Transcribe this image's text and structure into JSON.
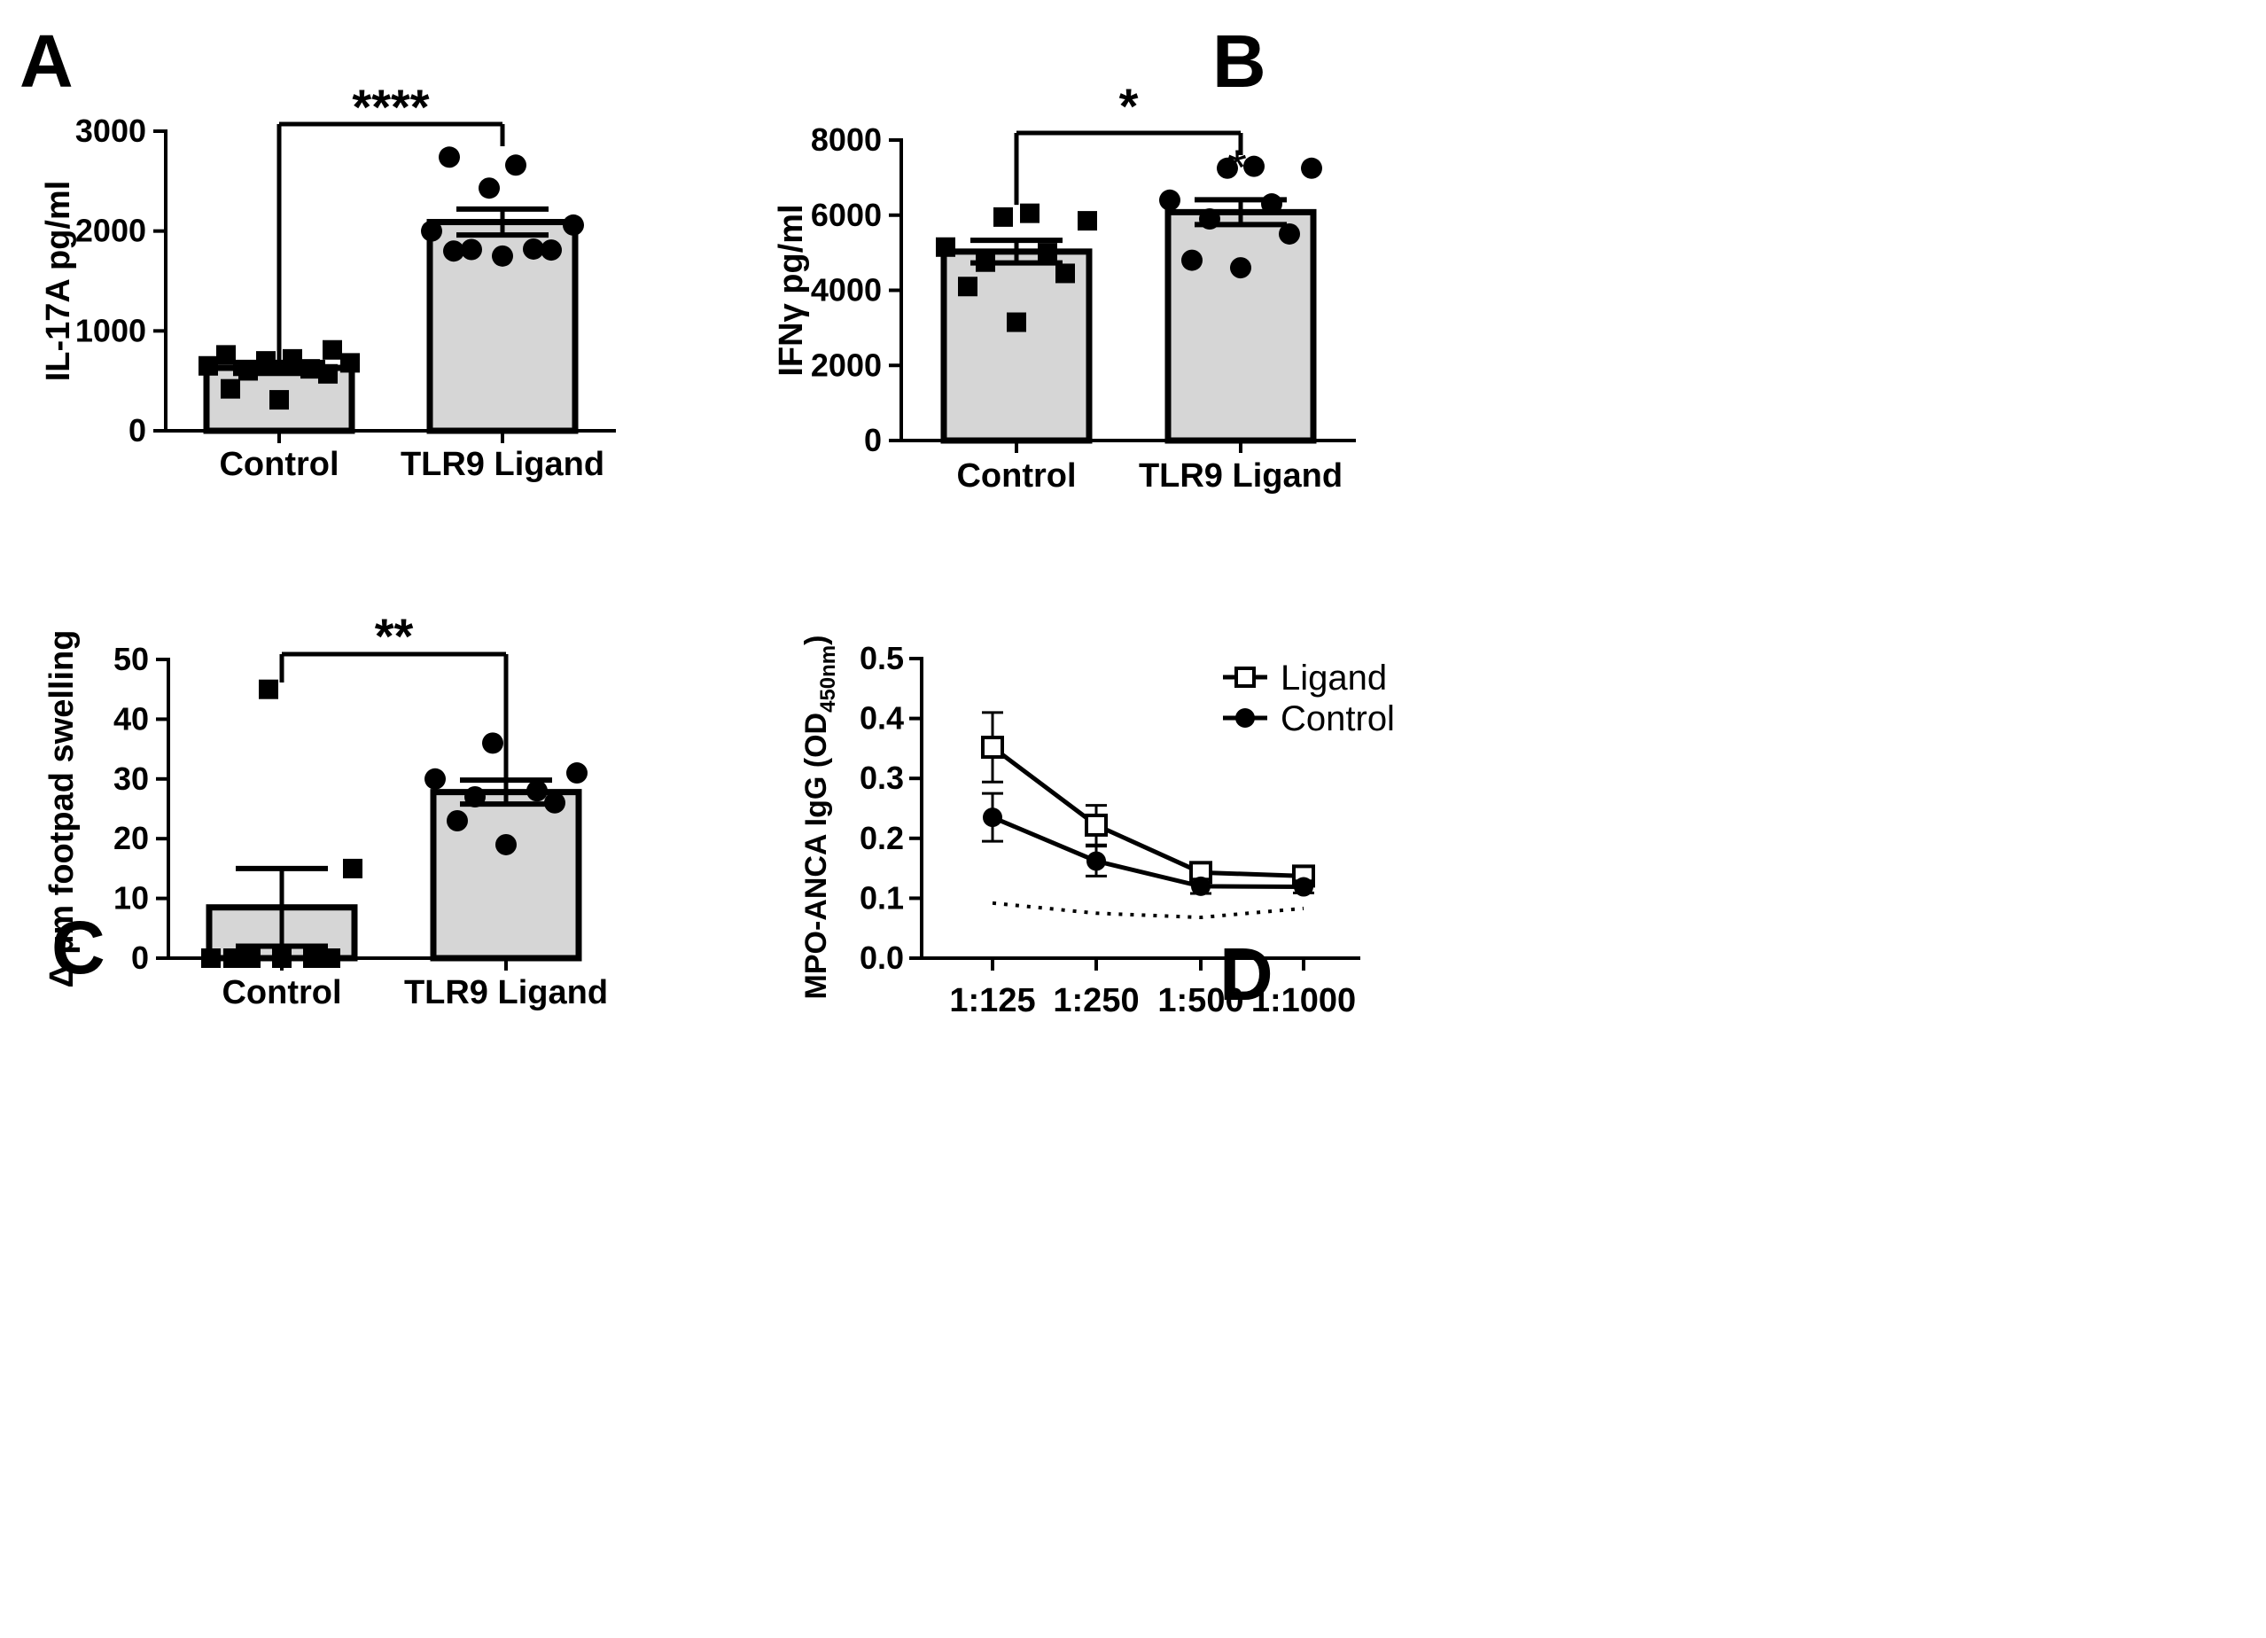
{
  "colors": {
    "bar_fill": "#d6d6d6",
    "ink": "#000000",
    "background": "#ffffff"
  },
  "chart_data": [
    {
      "id": "A",
      "type": "bar",
      "panel_label": "A",
      "ylabel": "IL-17A pg/ml",
      "ylim": [
        0,
        3000
      ],
      "yticks": [
        0,
        1000,
        2000,
        3000
      ],
      "categories": [
        "Control",
        "TLR9 Ligand"
      ],
      "values": [
        630,
        2090
      ],
      "sem": [
        55,
        130
      ],
      "markers": [
        "square",
        "circle"
      ],
      "points": [
        [
          310,
          420,
          570,
          600,
          620,
          650,
          680,
          700,
          720,
          760,
          810
        ],
        [
          1750,
          1800,
          1810,
          1815,
          1820,
          2000,
          2060,
          2430,
          2660,
          2740
        ]
      ],
      "significance": "****",
      "asterisk_on_bar": ""
    },
    {
      "id": "B",
      "type": "bar",
      "panel_label": "B",
      "ylabel": "IFNγ pg/ml",
      "ylim": [
        0,
        8000
      ],
      "yticks": [
        0,
        2000,
        4000,
        6000,
        8000
      ],
      "categories": [
        "Control",
        "TLR9 Ligand"
      ],
      "values": [
        5030,
        6080
      ],
      "sem": [
        300,
        330
      ],
      "markers": [
        "square",
        "circle"
      ],
      "points": [
        [
          3150,
          4100,
          4450,
          4750,
          5000,
          5150,
          5850,
          5950,
          6050
        ],
        [
          4600,
          4800,
          5500,
          5900,
          6300,
          6400,
          7250,
          7250,
          7300
        ]
      ],
      "significance": "*",
      "asterisk_on_bar": "*"
    },
    {
      "id": "C",
      "type": "bar",
      "panel_label": "C",
      "ylabel": "Δ µm footpad swelling",
      "ylim": [
        0,
        50
      ],
      "yticks": [
        0,
        10,
        20,
        30,
        40,
        50
      ],
      "categories": [
        "Control",
        "TLR9 Ligand"
      ],
      "values": [
        8.5,
        27.8
      ],
      "sem": [
        6.5,
        2.0
      ],
      "markers": [
        "square",
        "circle"
      ],
      "points": [
        [
          0,
          0,
          0,
          0,
          0,
          0,
          15,
          45
        ],
        [
          19,
          23,
          26,
          27,
          28,
          30,
          31,
          36
        ]
      ],
      "significance": "**",
      "asterisk_on_bar": ""
    },
    {
      "id": "D",
      "type": "line",
      "panel_label": "D",
      "ylabel": "MPO-ANCA IgG (OD",
      "ylabel_subscript": "450nm",
      "ylabel_suffix": ")",
      "ylim": [
        0,
        0.5
      ],
      "yticks": [
        "0.0",
        "0.1",
        "0.2",
        "0.3",
        "0.4",
        "0.5"
      ],
      "categories": [
        "1:125",
        "1:250",
        "1:500",
        "1:1000"
      ],
      "series": [
        {
          "name": "Ligand",
          "marker": "open-square",
          "values": [
            0.352,
            0.222,
            0.143,
            0.137
          ],
          "errors": [
            0.058,
            0.033,
            0.016,
            0.016
          ]
        },
        {
          "name": "Control",
          "marker": "filled-circle",
          "values": [
            0.235,
            0.162,
            0.12,
            0.119
          ],
          "errors": [
            0.04,
            0.025,
            0.012,
            0.01
          ]
        },
        {
          "name": "",
          "style": "dotted",
          "values": [
            0.092,
            0.075,
            0.068,
            0.083
          ]
        }
      ],
      "legend_position": "top-right"
    }
  ]
}
